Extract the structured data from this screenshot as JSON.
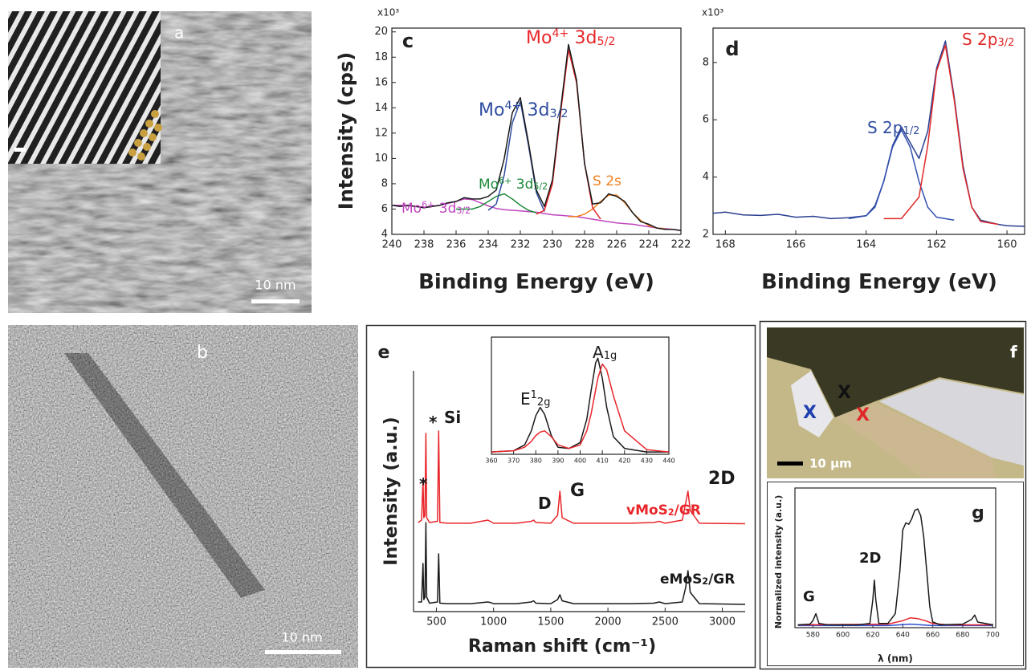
{
  "chart_data": [
    {
      "type": "line",
      "panel": "c",
      "ylabel": "Intensity (cps)",
      "xlabel": "Binding Energy (eV)",
      "multiplier": "x10³",
      "x": [
        240,
        239.5,
        239,
        238.5,
        238,
        237.5,
        237,
        236.5,
        236,
        235.5,
        235,
        234.5,
        234,
        233.5,
        233,
        232.5,
        232,
        231.5,
        231,
        230.5,
        230,
        229.5,
        229,
        228.5,
        228,
        227.5,
        227,
        226.5,
        226,
        225.5,
        225,
        224.5,
        224,
        223.5,
        223,
        222.5,
        222
      ],
      "xlim": [
        240,
        222
      ],
      "xticks": [
        240,
        238,
        236,
        234,
        232,
        230,
        228,
        226,
        224,
        222
      ],
      "ylim": [
        4,
        20.3
      ],
      "yticks": [
        4,
        6,
        8,
        10,
        12,
        14,
        16,
        18,
        20
      ],
      "series": [
        {
          "color": "#c046c0",
          "values": [
            6.3,
            6.3,
            6.25,
            6.2,
            6.15,
            6.2,
            6.3,
            6.45,
            6.6,
            6.8,
            6.75,
            6.5,
            6.25,
            6.05,
            5.95,
            5.9,
            5.85,
            5.8,
            5.75,
            5.65,
            5.55,
            5.5,
            5.45,
            5.4,
            5.3,
            5.2,
            5.1,
            5.0,
            4.9,
            4.85,
            4.8,
            4.7,
            4.6,
            4.5,
            4.45,
            4.4,
            4.3
          ]
        },
        {
          "color": "#1e8a3a",
          "x": [
            236,
            235.5,
            235,
            234.5,
            234,
            233.5,
            233,
            232.5,
            232,
            231.5,
            231
          ],
          "values": [
            6.0,
            6.0,
            6.0,
            6.2,
            6.6,
            7.0,
            7.2,
            6.8,
            6.3,
            5.9,
            5.7
          ]
        },
        {
          "color": "#f08020",
          "x": [
            229,
            228.5,
            228,
            227.5,
            227,
            226.5,
            226,
            225.5,
            225,
            224.5,
            224,
            223.5,
            223
          ],
          "values": [
            5.4,
            5.4,
            5.6,
            6.0,
            6.6,
            7.1,
            7.1,
            6.5,
            5.7,
            5.1,
            4.7,
            4.5,
            4.45
          ]
        },
        {
          "color": "#2f4da0",
          "x": [
            234,
            233.5,
            233,
            232.5,
            232,
            231.5,
            231,
            230.5
          ],
          "values": [
            5.9,
            6.4,
            8.7,
            12.8,
            14.5,
            11.1,
            7.3,
            5.8
          ]
        },
        {
          "color": "#e8262a",
          "x": [
            231,
            230.5,
            230,
            229.5,
            229,
            228.5,
            228,
            227.5,
            227
          ],
          "values": [
            5.6,
            5.9,
            8.0,
            13.5,
            18.6,
            16.0,
            9.6,
            6.1,
            5.2
          ]
        },
        {
          "color": "#1a1a1a",
          "values": [
            6.3,
            6.2,
            6.3,
            6.2,
            6.1,
            6.2,
            6.3,
            6.5,
            6.6,
            6.9,
            6.8,
            6.8,
            7.0,
            7.5,
            10.0,
            13.6,
            14.8,
            11.3,
            7.5,
            6.2,
            8.3,
            13.8,
            19.0,
            16.2,
            9.6,
            6.4,
            6.5,
            7.2,
            7.0,
            6.6,
            5.7,
            5.0,
            4.8,
            4.5,
            4.4,
            4.4,
            4.3
          ]
        }
      ],
      "annotations": [
        {
          "color": "#e8262a",
          "parts": [
            {
              "text": "Mo"
            },
            {
              "text": "4+",
              "style": "sup"
            },
            {
              "text": " 3d"
            },
            {
              "text": "5/2",
              "style": "sub"
            }
          ]
        },
        {
          "color": "#2f4da0",
          "parts": [
            {
              "text": "Mo"
            },
            {
              "text": "4+",
              "style": "sup"
            },
            {
              "text": " 3d"
            },
            {
              "text": "3/2",
              "style": "sub"
            }
          ]
        },
        {
          "color": "#c046c0",
          "parts": [
            {
              "text": "Mo"
            },
            {
              "text": "6+",
              "style": "sup"
            },
            {
              "text": " 3d"
            },
            {
              "text": "3/2",
              "style": "sub"
            }
          ]
        },
        {
          "color": "#1e8a3a",
          "parts": [
            {
              "text": "Mo"
            },
            {
              "text": "6+",
              "style": "sup"
            },
            {
              "text": " 3d"
            },
            {
              "text": "5/2",
              "style": "sub"
            }
          ]
        },
        {
          "color": "#f08020",
          "parts": [
            {
              "text": "S 2s"
            }
          ]
        }
      ]
    },
    {
      "type": "line",
      "panel": "d",
      "xlabel": "Binding Energy (eV)",
      "multiplier": "x10³",
      "x": [
        169,
        168.5,
        168,
        167.5,
        167,
        166.5,
        166,
        165.5,
        165,
        164.5,
        164,
        163.75,
        163.5,
        163.25,
        163,
        162.75,
        162.5,
        162.25,
        162,
        161.75,
        161.5,
        161.25,
        161,
        160.75,
        160.5,
        160.25,
        160,
        159.5
      ],
      "xlim": [
        168.35,
        159.5
      ],
      "xticks": [
        168,
        166,
        164,
        162,
        160
      ],
      "ylim": [
        2,
        9.2
      ],
      "yticks": [
        2,
        4,
        6,
        8
      ],
      "series": [
        {
          "color": "#2a3f8f",
          "values": [
            2.8,
            2.72,
            2.78,
            2.68,
            2.66,
            2.7,
            2.6,
            2.63,
            2.55,
            2.58,
            2.65,
            3.0,
            3.85,
            5.1,
            5.75,
            5.2,
            4.65,
            5.6,
            7.8,
            8.75,
            6.8,
            4.4,
            2.95,
            2.5,
            2.42,
            2.35,
            2.3,
            2.28
          ]
        },
        {
          "color": "#3050b0",
          "x": [
            164.5,
            164,
            163.75,
            163.5,
            163.25,
            163,
            162.75,
            162.5,
            162.25,
            162,
            161.5
          ],
          "values": [
            2.55,
            2.65,
            2.95,
            3.85,
            5.05,
            5.65,
            5.05,
            3.85,
            2.95,
            2.6,
            2.5
          ]
        },
        {
          "color": "#e02828",
          "x": [
            163.5,
            163,
            162.5,
            162.25,
            162,
            161.75,
            161.5,
            161.25,
            161,
            160.75,
            160.5,
            160.25
          ],
          "values": [
            2.55,
            2.55,
            3.3,
            5.1,
            7.7,
            8.6,
            6.7,
            4.3,
            2.95,
            2.45,
            2.4,
            2.35
          ]
        }
      ],
      "annotations": [
        {
          "color": "#2f4da0",
          "parts": [
            {
              "text": "S 2p"
            },
            {
              "text": "1/2",
              "style": "sub"
            }
          ]
        },
        {
          "color": "#e02828",
          "parts": [
            {
              "text": "S 2p"
            },
            {
              "text": "3/2",
              "style": "sub"
            }
          ]
        }
      ]
    },
    {
      "type": "line",
      "panel": "e",
      "ylabel": "Intensity (a.u.)",
      "xlabel": "Raman shift (cm⁻¹)",
      "x": [
        340,
        370,
        383,
        390,
        400,
        408,
        415,
        440,
        510,
        520,
        530,
        600,
        800,
        950,
        970,
        1000,
        1200,
        1330,
        1350,
        1370,
        1500,
        1560,
        1580,
        1600,
        1700,
        2200,
        2400,
        2450,
        2500,
        2650,
        2680,
        2700,
        2720,
        2800,
        3200
      ],
      "xlim": [
        300,
        3200
      ],
      "xticks": [
        500,
        1000,
        1500,
        2000,
        2500,
        3000
      ],
      "ylim": [
        0,
        1
      ],
      "series": [
        {
          "color": "#1a1a1a",
          "values": [
            0.04,
            0.04,
            0.2,
            0.05,
            0.06,
            0.37,
            0.06,
            0.035,
            0.04,
            0.24,
            0.035,
            0.033,
            0.033,
            0.04,
            0.038,
            0.033,
            0.033,
            0.04,
            0.045,
            0.035,
            0.033,
            0.05,
            0.07,
            0.045,
            0.033,
            0.033,
            0.035,
            0.04,
            0.033,
            0.04,
            0.1,
            0.17,
            0.08,
            0.033,
            0.03
          ]
        },
        {
          "color": "#e8262a",
          "values": [
            0.37,
            0.38,
            0.55,
            0.39,
            0.4,
            0.74,
            0.39,
            0.37,
            0.375,
            0.75,
            0.37,
            0.367,
            0.367,
            0.38,
            0.375,
            0.367,
            0.367,
            0.375,
            0.38,
            0.37,
            0.367,
            0.4,
            0.5,
            0.39,
            0.367,
            0.367,
            0.37,
            0.375,
            0.367,
            0.38,
            0.45,
            0.5,
            0.42,
            0.367,
            0.365
          ]
        }
      ],
      "annotations": [
        {
          "color": "#1a1a1a",
          "parts": [
            {
              "text": "*"
            }
          ]
        },
        {
          "color": "#1a1a1a",
          "parts": [
            {
              "text": "*"
            }
          ]
        },
        {
          "color": "#1a1a1a",
          "parts": [
            {
              "text": "Si"
            }
          ]
        },
        {
          "color": "#1a1a1a",
          "parts": [
            {
              "text": "D"
            }
          ]
        },
        {
          "color": "#1a1a1a",
          "parts": [
            {
              "text": "G"
            }
          ]
        },
        {
          "color": "#1a1a1a",
          "parts": [
            {
              "text": "2D"
            }
          ]
        },
        {
          "color": "#e8262a",
          "parts": [
            {
              "text": "vMoS"
            },
            {
              "text": "2",
              "style": "sub"
            },
            {
              "text": "/GR"
            }
          ]
        },
        {
          "color": "#1a1a1a",
          "parts": [
            {
              "text": "eMoS"
            },
            {
              "text": "2",
              "style": "sub"
            },
            {
              "text": "/GR"
            }
          ]
        }
      ]
    },
    {
      "type": "line",
      "x": [
        360,
        370,
        375,
        378,
        380,
        382,
        384,
        387,
        390,
        395,
        400,
        403,
        405,
        407,
        408,
        410,
        412,
        415,
        420,
        430,
        440
      ],
      "xlim": [
        360,
        440
      ],
      "xticks": [
        360,
        370,
        380,
        390,
        400,
        410,
        420,
        430,
        440
      ],
      "ylim": [
        0,
        1
      ],
      "series": [
        {
          "color": "#1a1a1a",
          "values": [
            0.02,
            0.03,
            0.08,
            0.2,
            0.33,
            0.4,
            0.34,
            0.16,
            0.06,
            0.05,
            0.1,
            0.3,
            0.55,
            0.78,
            0.82,
            0.65,
            0.4,
            0.15,
            0.05,
            0.02,
            0.02
          ]
        },
        {
          "color": "#e8262a",
          "values": [
            0.02,
            0.03,
            0.06,
            0.11,
            0.16,
            0.19,
            0.2,
            0.15,
            0.08,
            0.05,
            0.08,
            0.2,
            0.35,
            0.55,
            0.65,
            0.77,
            0.72,
            0.5,
            0.2,
            0.04,
            0.02
          ]
        }
      ],
      "annotations": [
        {
          "color": "#1a1a1a",
          "parts": [
            {
              "text": "E"
            },
            {
              "text": "1",
              "style": "sup"
            },
            {
              "text": "2g",
              "style": "sub"
            }
          ]
        },
        {
          "color": "#1a1a1a",
          "parts": [
            {
              "text": "A"
            },
            {
              "text": "1g",
              "style": "sub"
            }
          ]
        }
      ]
    },
    {
      "type": "line",
      "panel": "g",
      "ylabel": "Normalized intensity (a.u.)",
      "xlabel": "λ (nm)",
      "x": [
        570,
        578,
        580,
        582,
        584,
        590,
        610,
        618,
        620,
        621,
        622,
        624,
        630,
        635,
        638,
        640,
        642,
        644,
        646,
        648,
        650,
        652,
        654,
        656,
        658,
        660,
        665,
        680,
        686,
        688,
        690,
        700
      ],
      "xlim": [
        568,
        702
      ],
      "xticks": [
        580,
        600,
        620,
        640,
        660,
        680,
        700
      ],
      "ylim": [
        0,
        1
      ],
      "series": [
        {
          "color": "#3050d0",
          "x": [
            570,
            630,
            645,
            660,
            700
          ],
          "values": [
            0.015,
            0.015,
            0.025,
            0.015,
            0.015
          ]
        },
        {
          "color": "#e8262a",
          "x": [
            570,
            630,
            640,
            645,
            650,
            655,
            660,
            670,
            700
          ],
          "values": [
            0.02,
            0.025,
            0.05,
            0.07,
            0.065,
            0.05,
            0.03,
            0.02,
            0.02
          ]
        },
        {
          "color": "#1a1a1a",
          "values": [
            0.02,
            0.025,
            0.05,
            0.1,
            0.03,
            0.02,
            0.02,
            0.03,
            0.2,
            0.34,
            0.2,
            0.03,
            0.03,
            0.1,
            0.4,
            0.7,
            0.75,
            0.74,
            0.78,
            0.84,
            0.85,
            0.8,
            0.65,
            0.4,
            0.15,
            0.04,
            0.02,
            0.025,
            0.06,
            0.09,
            0.04,
            0.02
          ]
        }
      ],
      "annotations": [
        {
          "color": "#1a1a1a",
          "parts": [
            {
              "text": "G"
            }
          ]
        },
        {
          "color": "#1a1a1a",
          "parts": [
            {
              "text": "2D"
            }
          ]
        }
      ]
    }
  ],
  "images": [
    {
      "panel": "a",
      "scale_bar": "10 nm"
    },
    {
      "panel": "b",
      "scale_bar": "10 nm"
    },
    {
      "panel": "f",
      "scale_bar": "10 μm",
      "markers": [
        "X",
        "X",
        "X"
      ]
    }
  ]
}
